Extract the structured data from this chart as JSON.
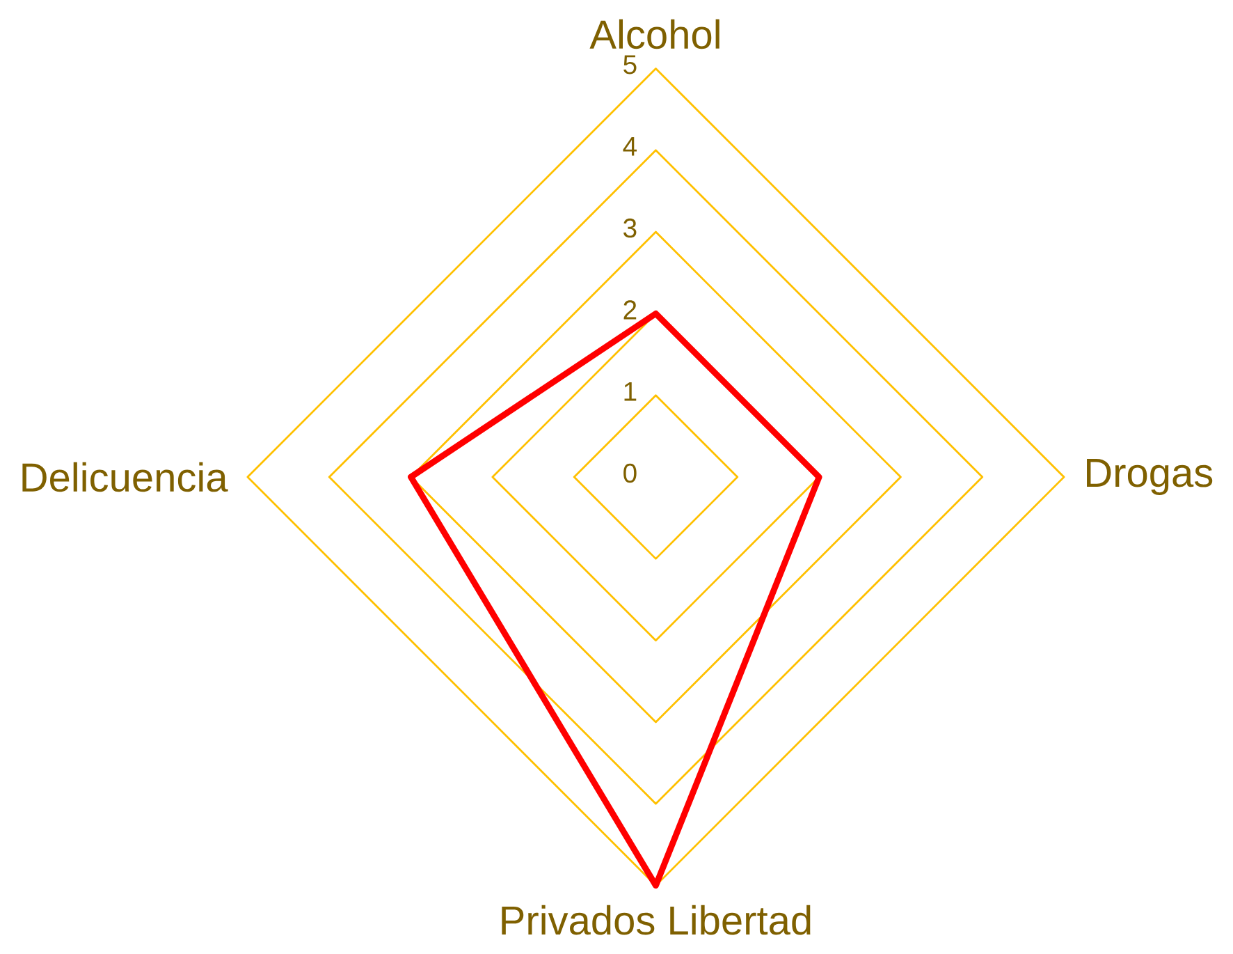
{
  "chart_data": {
    "type": "radar",
    "categories": [
      "Alcohol",
      "Drogas",
      "Privados Libertad",
      "Delicuencia"
    ],
    "series": [
      {
        "color": "#ff0000",
        "values": [
          2,
          2,
          5,
          3
        ]
      }
    ],
    "ylim": [
      0,
      5
    ],
    "yticks": [
      0,
      1,
      2,
      3,
      4,
      5
    ],
    "grid": true
  }
}
